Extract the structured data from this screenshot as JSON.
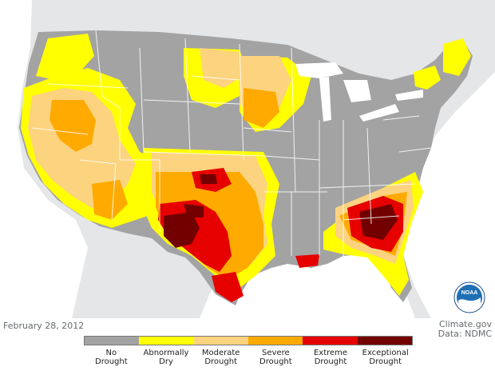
{
  "map": {
    "date": "February 28, 2012",
    "source_line1": "Climate.gov",
    "source_line2": "Data: NDMC",
    "logo_text": "NOAA"
  },
  "legend": {
    "items": [
      {
        "line1": "No",
        "line2": "Drought",
        "color": "#a3a3a3"
      },
      {
        "line1": "Abnormally",
        "line2": "Dry",
        "color": "#ffff00"
      },
      {
        "line1": "Moderate",
        "line2": "Drought",
        "color": "#fcd37f"
      },
      {
        "line1": "Severe",
        "line2": "Drought",
        "color": "#ffaa00"
      },
      {
        "line1": "Extreme",
        "line2": "Drought",
        "color": "#e60000"
      },
      {
        "line1": "Exceptional",
        "line2": "Drought",
        "color": "#730000"
      }
    ]
  },
  "colors": {
    "background_land": "#e4e6e8",
    "water": "#ffffff",
    "state_lines": "#ffffff"
  }
}
